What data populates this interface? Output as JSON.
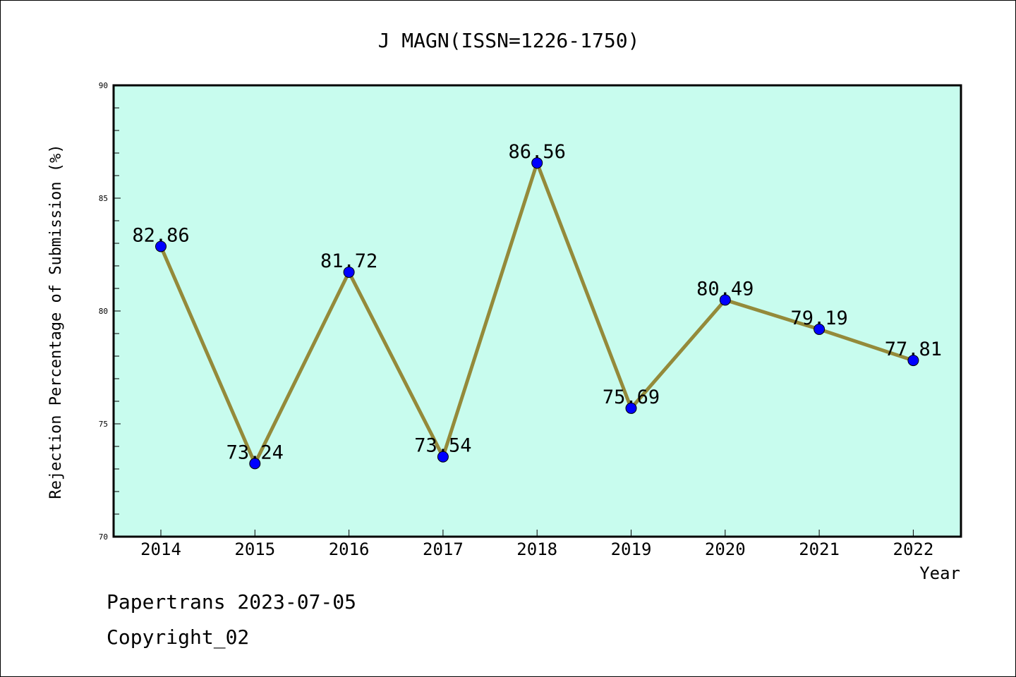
{
  "chart_data": {
    "type": "line",
    "title": "J MAGN(ISSN=1226-1750)",
    "xlabel": "Year",
    "ylabel": "Rejection Percentage of Submission (%)",
    "categories": [
      "2014",
      "2015",
      "2016",
      "2017",
      "2018",
      "2019",
      "2020",
      "2021",
      "2022"
    ],
    "series": [
      {
        "values": [
          82.86,
          73.24,
          81.72,
          73.54,
          86.56,
          75.69,
          80.49,
          79.19,
          77.81
        ],
        "labels": [
          "82.86",
          "73.24",
          "81.72",
          "73.54",
          "86.56",
          "75.69",
          "80.49",
          "79.19",
          "77.81"
        ]
      }
    ],
    "ylim": [
      70,
      90
    ],
    "yticks": [
      "70",
      "75",
      "80",
      "85",
      "90"
    ],
    "grid": false,
    "colors": {
      "plot_background": "#c8fcee",
      "line": "#948a3a",
      "marker": "#0000ff"
    }
  },
  "footer": {
    "date_line": "Papertrans 2023-07-05",
    "copyright_line": "Copyright_02"
  }
}
